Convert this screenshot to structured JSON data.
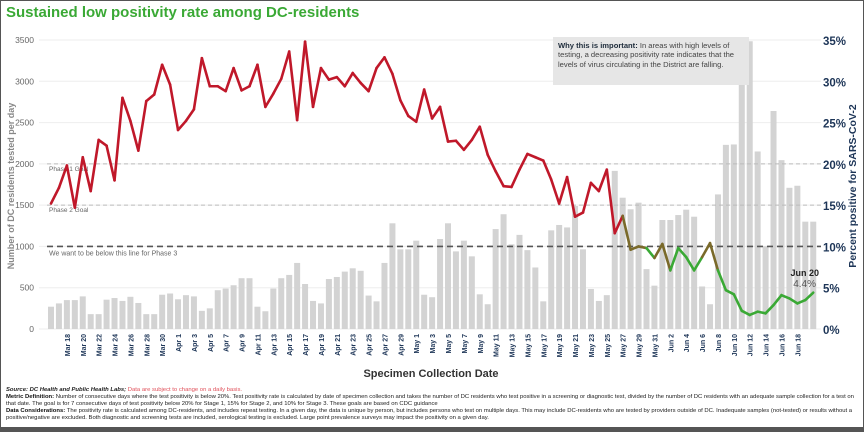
{
  "title": "Sustained low positivity rate among DC-residents",
  "annotation": {
    "heading": "Why this is important:",
    "text": "In areas with high levels of testing, a decreasing positivity rate indicates that the levels of virus circulating in the District are falling."
  },
  "footer": {
    "source_label": "Source: DC Health and Public Health Labs;",
    "source_warning": "Data are subject to change on a daily basis.",
    "metric_label": "Metric Definition:",
    "metric_text": "Number of consecutive days where the test positivity is below 20%. Test positivity rate is calculated by date of specimen collection and takes the number of DC residents who test positive in a screening or diagnostic test, divided by the number of DC residents with an adequate sample collection for a test on that date. The goal is for 7 consecutive days of test positivity below 20% for Stage 1, 15% for Stage 2, and 10% for Stage 3. These goals are based on CDC guidance",
    "considerations_label": "Data Considerations:",
    "considerations_text": "The positivity rate is calculated among DC-residents, and includes repeat testing. In a given day, the data is unique by person, but includes persons who test on multiple days. This may include DC-residents who are tested by providers outside of DC. Inadequate samples (not-tested) or results without a positive/negative are excluded. Both diagnostic and screening tests are included, serological testing is excluded. Large point prevalence surveys may impact the positivity on a given day."
  },
  "colors": {
    "title": "#3aa935",
    "bars": "#d3d3d3",
    "line_high": "#c0182a",
    "line_low": "#3aa935",
    "axis_title_right": "#1d3557"
  },
  "chart_data": {
    "type": "bar+line",
    "xlabel": "Specimen Collection Date",
    "ylabel_left": "Number of DC residents tested per day",
    "ylabel_right": "Percent positive for SARS-CoV-2",
    "ylim_left": [
      0,
      3500
    ],
    "ylim_right": [
      0,
      35
    ],
    "yticks_left": [
      "0",
      "500",
      "1000",
      "1500",
      "2000",
      "2500",
      "3000",
      "3500"
    ],
    "yticks_right": [
      "0%",
      "5%",
      "10%",
      "15%",
      "20%",
      "25%",
      "30%",
      "35%"
    ],
    "xtick_labels": [
      "Mar 18",
      "Mar 20",
      "Mar 22",
      "Mar 24",
      "Mar 26",
      "Mar 28",
      "Mar 30",
      "Apr 1",
      "Apr 3",
      "Apr 5",
      "Apr 7",
      "Apr 9",
      "Apr 11",
      "Apr 13",
      "Apr 15",
      "Apr 17",
      "Apr 19",
      "Apr 21",
      "Apr 23",
      "Apr 25",
      "Apr 27",
      "Apr 29",
      "May 1",
      "May 3",
      "May 5",
      "May 7",
      "May 9",
      "May 11",
      "May 13",
      "May 15",
      "May 17",
      "May 19",
      "May 21",
      "May 23",
      "May 25",
      "May 27",
      "May 29",
      "May 31",
      "Jun 2",
      "Jun 4",
      "Jun 6",
      "Jun 8",
      "Jun 10",
      "Jun 12",
      "Jun 14",
      "Jun 16",
      "Jun 18"
    ],
    "grid": true,
    "reference_lines": [
      {
        "label": "Phase 1 Goal",
        "value": 20
      },
      {
        "label": "Phase 2 Goal",
        "value": 15
      },
      {
        "label": "We want to be below this line for Phase 3",
        "value": 10
      }
    ],
    "last_point_label": {
      "date": "Jun 20",
      "value": "4.4%"
    },
    "dates": [
      "Mar 16",
      "Mar 17",
      "Mar 18",
      "Mar 19",
      "Mar 20",
      "Mar 21",
      "Mar 22",
      "Mar 23",
      "Mar 24",
      "Mar 25",
      "Mar 26",
      "Mar 27",
      "Mar 28",
      "Mar 29",
      "Mar 30",
      "Mar 31",
      "Apr 1",
      "Apr 2",
      "Apr 3",
      "Apr 4",
      "Apr 5",
      "Apr 6",
      "Apr 7",
      "Apr 8",
      "Apr 9",
      "Apr 10",
      "Apr 11",
      "Apr 12",
      "Apr 13",
      "Apr 14",
      "Apr 15",
      "Apr 16",
      "Apr 17",
      "Apr 18",
      "Apr 19",
      "Apr 20",
      "Apr 21",
      "Apr 22",
      "Apr 23",
      "Apr 24",
      "Apr 25",
      "Apr 26",
      "Apr 27",
      "Apr 28",
      "Apr 29",
      "Apr 30",
      "May 1",
      "May 2",
      "May 3",
      "May 4",
      "May 5",
      "May 6",
      "May 7",
      "May 8",
      "May 9",
      "May 10",
      "May 11",
      "May 12",
      "May 13",
      "May 14",
      "May 15",
      "May 16",
      "May 17",
      "May 18",
      "May 19",
      "May 20",
      "May 21",
      "May 22",
      "May 23",
      "May 24",
      "May 25",
      "May 26",
      "May 27",
      "May 28",
      "May 29",
      "May 30",
      "May 31",
      "Jun 1",
      "Jun 2",
      "Jun 3",
      "Jun 4",
      "Jun 5",
      "Jun 6",
      "Jun 7",
      "Jun 8",
      "Jun 9",
      "Jun 10",
      "Jun 11",
      "Jun 12",
      "Jun 13",
      "Jun 14",
      "Jun 15",
      "Jun 16",
      "Jun 17",
      "Jun 18",
      "Jun 19",
      "Jun 20"
    ],
    "series": [
      {
        "name": "Number of DC residents tested per day",
        "type": "bar",
        "axis": "left",
        "values": [
          270,
          310,
          350,
          350,
          395,
          180,
          180,
          355,
          375,
          340,
          390,
          315,
          180,
          180,
          415,
          430,
          360,
          410,
          395,
          220,
          250,
          470,
          490,
          530,
          615,
          615,
          270,
          215,
          490,
          615,
          655,
          800,
          545,
          340,
          310,
          605,
          630,
          695,
          735,
          705,
          405,
          335,
          800,
          1280,
          965,
          965,
          1070,
          415,
          385,
          1090,
          1280,
          940,
          1070,
          880,
          420,
          300,
          1210,
          1390,
          1025,
          1140,
          955,
          745,
          335,
          1195,
          1260,
          1230,
          1490,
          965,
          485,
          340,
          410,
          1915,
          1590,
          1450,
          1530,
          725,
          525,
          1320,
          1320,
          1380,
          1445,
          1360,
          515,
          300,
          1630,
          2230,
          2235,
          3010,
          3485,
          2150,
          1000,
          2640,
          2045,
          1710,
          1735,
          1300,
          1300
        ]
      },
      {
        "name": "Percent positive for SARS-CoV-2",
        "type": "line",
        "axis": "right",
        "values": [
          15.2,
          17.1,
          19.8,
          14.7,
          20.8,
          16.7,
          22.9,
          22.2,
          18.0,
          28.0,
          25.2,
          21.6,
          27.6,
          28.4,
          32.0,
          29.6,
          24.1,
          25.2,
          26.6,
          32.8,
          29.4,
          29.4,
          28.8,
          31.6,
          28.9,
          29.4,
          32.0,
          26.9,
          28.5,
          30.3,
          33.6,
          25.3,
          34.8,
          26.9,
          31.6,
          30.2,
          30.5,
          29.4,
          31.0,
          29.8,
          28.8,
          31.6,
          32.9,
          30.9,
          27.7,
          25.8,
          25.1,
          29.0,
          25.5,
          26.9,
          22.7,
          22.8,
          21.7,
          22.9,
          24.5,
          21.1,
          19.1,
          17.3,
          17.2,
          19.3,
          21.2,
          20.8,
          20.4,
          18.1,
          15.2,
          18.4,
          13.6,
          14.1,
          17.7,
          16.7,
          19.3,
          11.6,
          13.7,
          9.6,
          10.0,
          9.8,
          8.6,
          10.3,
          7.1,
          9.8,
          8.7,
          7.1,
          8.7,
          10.4,
          7.1,
          4.7,
          4.2,
          2.2,
          1.7,
          2.1,
          1.9,
          2.9,
          4.1,
          3.7,
          3.1,
          3.5,
          4.4
        ]
      }
    ]
  }
}
